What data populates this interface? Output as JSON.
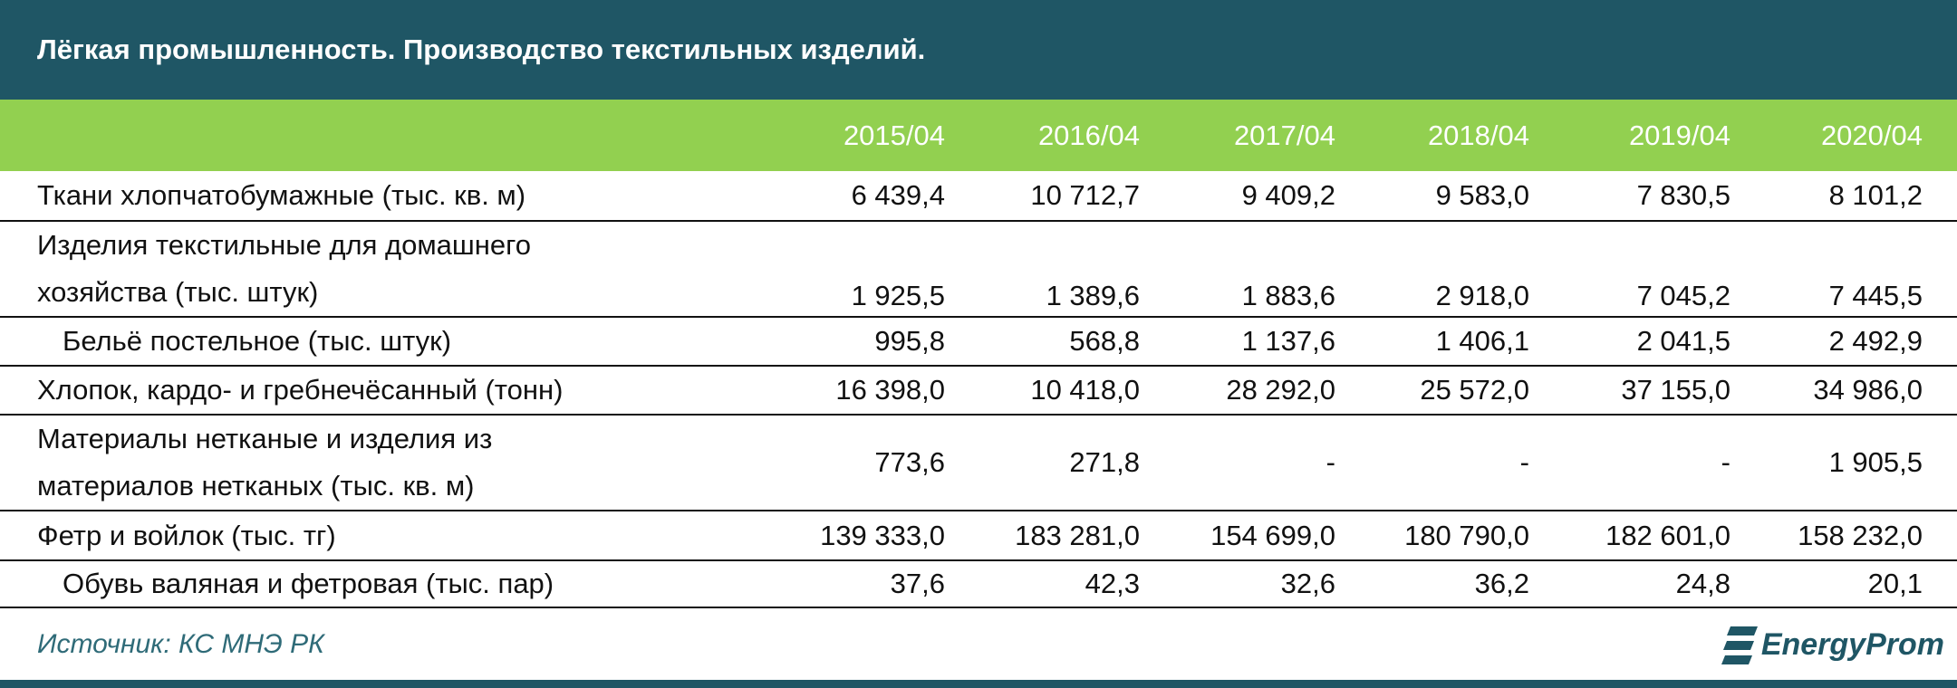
{
  "header": {
    "title": "Лёгкая промышленность. Производство текстильных изделий."
  },
  "table": {
    "columns": [
      "2015/04",
      "2016/04",
      "2017/04",
      "2018/04",
      "2019/04",
      "2020/04"
    ],
    "rows": [
      {
        "label": [
          "Ткани хлопчатобумажные (тыс. кв. м)"
        ],
        "values": [
          "6 439,4",
          "10 712,7",
          "9 409,2",
          "9 583,0",
          "7 830,5",
          "8 101,2"
        ]
      },
      {
        "label": [
          "Изделия текстильные для домашнего",
          "хозяйства (тыс. штук)"
        ],
        "values": [
          "1 925,5",
          "1 389,6",
          "1 883,6",
          "2 918,0",
          "7 045,2",
          "7 445,5"
        ]
      },
      {
        "label": [
          "Бельё постельное (тыс. штук)"
        ],
        "values": [
          "995,8",
          "568,8",
          "1 137,6",
          "1 406,1",
          "2 041,5",
          "2 492,9"
        ]
      },
      {
        "label": [
          "Хлопок, кардо- и гребнечёсанный (тонн)"
        ],
        "values": [
          "16 398,0",
          "10 418,0",
          "28 292,0",
          "25 572,0",
          "37 155,0",
          "34 986,0"
        ]
      },
      {
        "label": [
          "Материалы нетканые и изделия из",
          "материалов нетканых (тыс. кв. м)"
        ],
        "values": [
          "773,6",
          "271,8",
          "-",
          "-",
          "-",
          "1 905,5"
        ]
      },
      {
        "label": [
          "Фетр и войлок (тыс. тг)"
        ],
        "values": [
          "139 333,0",
          "183 281,0",
          "154 699,0",
          "180 790,0",
          "182 601,0",
          "158 232,0"
        ]
      },
      {
        "label": [
          "Обувь валяная и фетровая (тыс. пар)"
        ],
        "values": [
          "37,6",
          "42,3",
          "32,6",
          "36,2",
          "24,8",
          "20,1"
        ]
      }
    ]
  },
  "footer": {
    "source": "Источник: КС МНЭ РК",
    "logo": "EnergyProm"
  }
}
